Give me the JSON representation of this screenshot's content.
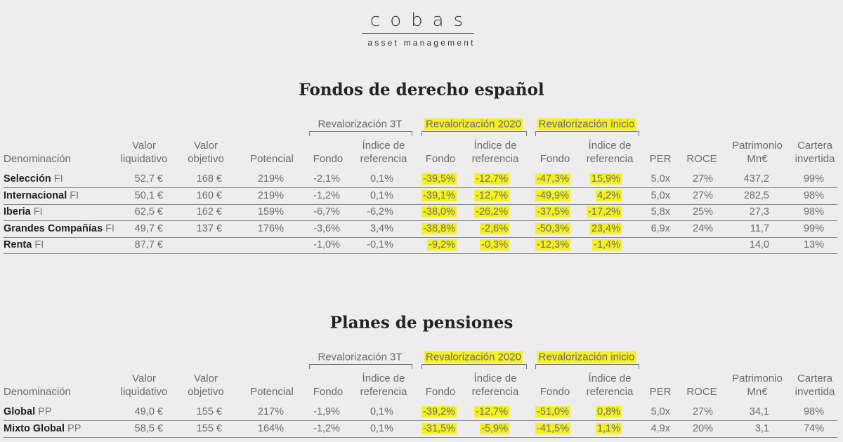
{
  "header": {
    "logo": "cobas",
    "subtitle": "asset management"
  },
  "sections": [
    {
      "title": "Fondos de derecho español",
      "groups": [
        "Revalorización 3T",
        "Revalorización 2020",
        "Revalorización inicio"
      ],
      "columns": [
        "Denominación",
        "Valor\nliquidativo",
        "Valor\nobjetivo",
        "Potencial",
        "Fondo",
        "Índice de\nreferencia",
        "Fondo",
        "Índice de\nreferencia",
        "Fondo",
        "Índice de\nreferencia",
        "PER",
        "ROCE",
        "Patrimonio\nMn€",
        "Cartera\ninvertida"
      ],
      "rows": [
        {
          "name": "Selección",
          "suffix": "FI",
          "cells": [
            "52,7 €",
            "168 €",
            "219%",
            "-2,1%",
            "0,1%",
            "-39,5%",
            "-12,7%",
            "-47,3%",
            "15,9%",
            "5,0x",
            "27%",
            "437,2",
            "99%"
          ]
        },
        {
          "name": "Internacional",
          "suffix": "FI",
          "cells": [
            "50,1 €",
            "160 €",
            "219%",
            "-1,2%",
            "0,1%",
            "-39,1%",
            "-12,7%",
            "-49,9%",
            "4,2%",
            "5,0x",
            "27%",
            "282,5",
            "98%"
          ]
        },
        {
          "name": "Iberia",
          "suffix": "FI",
          "cells": [
            "62,5 €",
            "162 €",
            "159%",
            "-6,7%",
            "-6,2%",
            "-38,0%",
            "-26,2%",
            "-37,5%",
            "-17,2%",
            "5,8x",
            "25%",
            "27,3",
            "98%"
          ]
        },
        {
          "name": "Grandes Compañías",
          "suffix": "FI",
          "cells": [
            "49,7 €",
            "137 €",
            "176%",
            "-3,6%",
            "3,4%",
            "-38,8%",
            "-2,6%",
            "-50,3%",
            "23,4%",
            "6,9x",
            "24%",
            "11,7",
            "99%"
          ]
        },
        {
          "name": "Renta",
          "suffix": "FI",
          "cells": [
            "87,7 €",
            null,
            null,
            "-1,0%",
            "-0,1%",
            "-9,2%",
            "-0,3%",
            "-12,3%",
            "-1,4%",
            null,
            null,
            "14,0",
            "13%"
          ]
        }
      ]
    },
    {
      "title": "Planes de pensiones",
      "groups": [
        "Revalorización 3T",
        "Revalorización 2020",
        "Revalorización inicio"
      ],
      "columns": [
        "Denominación",
        "Valor\nliquidativo",
        "Valor\nobjetivo",
        "Potencial",
        "Fondo",
        "Índice de\nreferencia",
        "Fondo",
        "Índice de\nreferencia",
        "Fondo",
        "Índice de\nreferencia",
        "PER",
        "ROCE",
        "Patrimonio\nMn€",
        "Cartera\ninvertida"
      ],
      "rows": [
        {
          "name": "Global",
          "suffix": "PP",
          "cells": [
            "49,0 €",
            "155 €",
            "217%",
            "-1,9%",
            "0,1%",
            "-39,2%",
            "-12,7%",
            "-51,0%",
            "0,8%",
            "5,0x",
            "27%",
            "34,1",
            "98%"
          ]
        },
        {
          "name": "Mixto Global",
          "suffix": "PP",
          "cells": [
            "58,5 €",
            "155 €",
            "164%",
            "-1,2%",
            "0,1%",
            "-31,5%",
            "-5,9%",
            "-41,5%",
            "1,1%",
            "4,9x",
            "20%",
            "3,1",
            "74%"
          ]
        }
      ]
    }
  ]
}
